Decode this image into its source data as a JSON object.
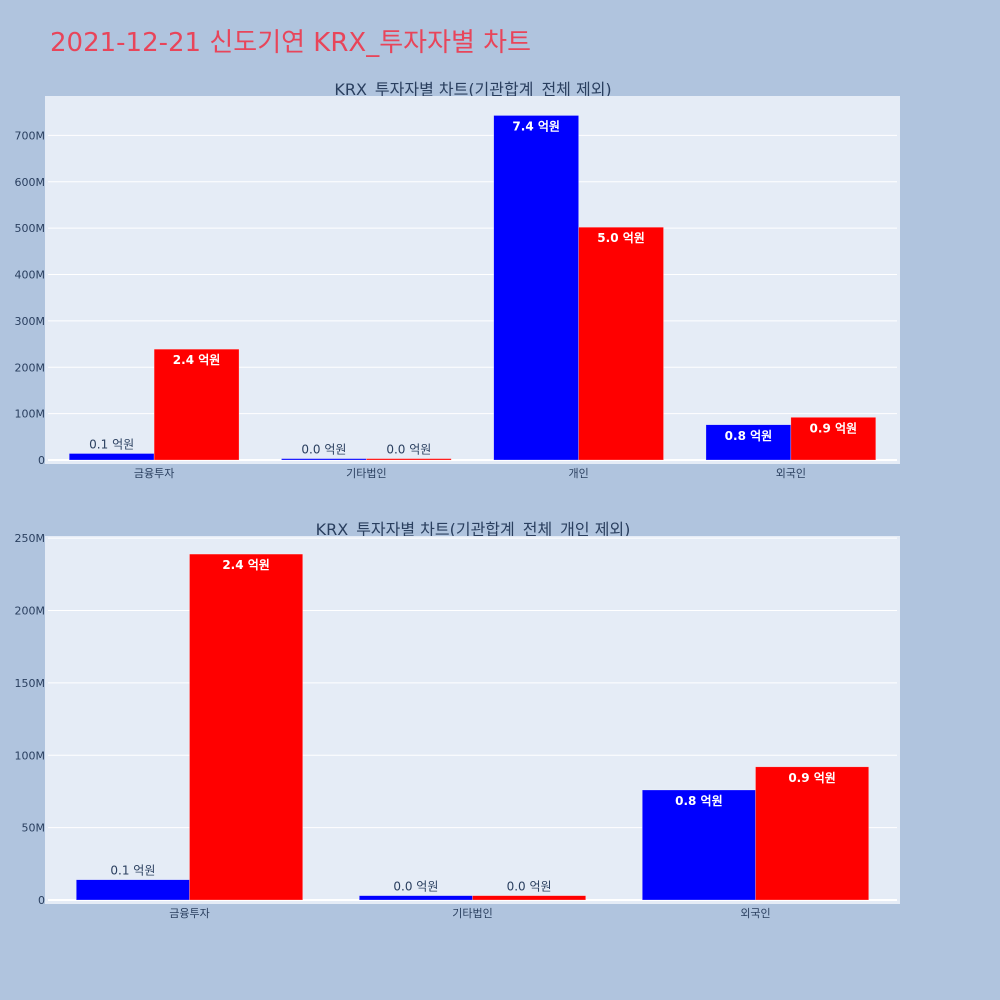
{
  "page": {
    "title": "2021-12-21 신도기연 KRX_투자자별 차트"
  },
  "colors": {
    "series_a": "#0000ff",
    "series_b": "#ff0000",
    "plot_bg": "#e5ecf6",
    "page_bg": "#b0c4de",
    "title": "#e8455a"
  },
  "chart_data": [
    {
      "type": "bar",
      "title": "KRX_투자자별 차트(기관합계_전체 제외)",
      "categories": [
        "금융투자",
        "기타법인",
        "개인",
        "외국인"
      ],
      "series": [
        {
          "values": [
            14000000,
            3000000,
            743000000,
            76000000
          ],
          "labels": [
            "0.1 억원",
            "0.0 억원",
            "7.4 억원",
            "0.8 억원"
          ],
          "color": "#0000ff"
        },
        {
          "values": [
            239000000,
            3000000,
            502000000,
            92000000
          ],
          "labels": [
            "2.4 억원",
            "0.0 억원",
            "5.0 억원",
            "0.9 억원"
          ],
          "color": "#ff0000"
        }
      ],
      "yticks": [
        0,
        100000000,
        200000000,
        300000000,
        400000000,
        500000000,
        600000000,
        700000000
      ],
      "ytick_labels": [
        "0",
        "100M",
        "200M",
        "300M",
        "400M",
        "500M",
        "600M",
        "700M"
      ],
      "ylim": [
        0,
        785000000
      ],
      "grid": true
    },
    {
      "type": "bar",
      "title": "KRX_투자자별 차트(기관합계_전체_개인 제외)",
      "categories": [
        "금융투자",
        "기타법인",
        "외국인"
      ],
      "series": [
        {
          "values": [
            14000000,
            3000000,
            76000000
          ],
          "labels": [
            "0.1 억원",
            "0.0 억원",
            "0.8 억원"
          ],
          "color": "#0000ff"
        },
        {
          "values": [
            239000000,
            3000000,
            92000000
          ],
          "labels": [
            "2.4 억원",
            "0.0 억원",
            "0.9 억원"
          ],
          "color": "#ff0000"
        }
      ],
      "yticks": [
        0,
        50000000,
        100000000,
        150000000,
        200000000,
        250000000
      ],
      "ytick_labels": [
        "0",
        "50M",
        "100M",
        "150M",
        "200M",
        "250M"
      ],
      "ylim": [
        0,
        251500000
      ],
      "grid": true
    }
  ]
}
